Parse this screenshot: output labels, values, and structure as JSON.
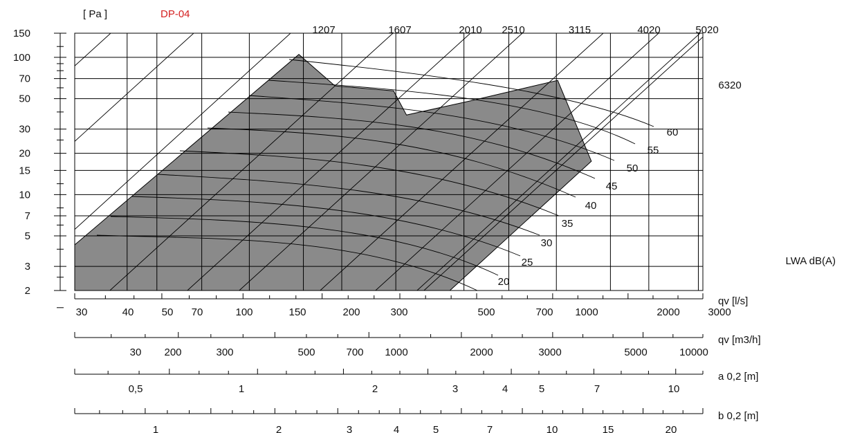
{
  "chart_data": {
    "type": "line",
    "title": "DP-04",
    "y_unit_label": "[ Pa ]",
    "y_axis": {
      "scale": "log",
      "range": [
        2,
        150
      ],
      "tick_labels": [
        "150",
        "100",
        "70",
        "50",
        "30",
        "20",
        "15",
        "10",
        "7",
        "5",
        "3",
        "2"
      ]
    },
    "x_axis": {
      "scale": "log",
      "range_l_s": [
        27,
        3000
      ]
    },
    "speed_lines_rpm": [
      "1207",
      "1607",
      "2010",
      "2510",
      "3115",
      "4020",
      "5020",
      "6320"
    ],
    "sound_power_curves": {
      "label": "LWA dB(A)",
      "values": [
        "60",
        "55",
        "50",
        "45",
        "40",
        "35",
        "30",
        "25",
        "20"
      ]
    },
    "operating_area_boundary": [
      {
        "qv_l_s": 27,
        "p_pa": 2
      },
      {
        "qv_l_s": 27,
        "p_pa": 4.3
      },
      {
        "qv_l_s": 145,
        "p_pa": 105
      },
      {
        "qv_l_s": 190,
        "p_pa": 62
      },
      {
        "qv_l_s": 295,
        "p_pa": 57
      },
      {
        "qv_l_s": 325,
        "p_pa": 38
      },
      {
        "qv_l_s": 520,
        "p_pa": 48
      },
      {
        "qv_l_s": 1010,
        "p_pa": 68
      },
      {
        "qv_l_s": 1300,
        "p_pa": 17.5
      },
      {
        "qv_l_s": 450,
        "p_pa": 2
      }
    ],
    "scales": [
      {
        "label": "qv [l/s]",
        "tick_labels": [
          "30",
          "40",
          "50",
          "70",
          "100",
          "150",
          "200",
          "300",
          "500",
          "700",
          "1000",
          "2000",
          "3000"
        ]
      },
      {
        "label": "qv [m3/h]",
        "tick_labels": [
          "30",
          "200",
          "300",
          "500",
          "700",
          "1000",
          "2000",
          "3000",
          "5000",
          "10000"
        ]
      },
      {
        "label": "a 0,2 [m]",
        "tick_labels": [
          "0,5",
          "1",
          "2",
          "3",
          "4",
          "5",
          "7",
          "10"
        ]
      },
      {
        "label": "b 0,2 [m]",
        "tick_labels": [
          "1",
          "2",
          "3",
          "4",
          "5",
          "7",
          "10",
          "15",
          "20"
        ]
      }
    ]
  }
}
